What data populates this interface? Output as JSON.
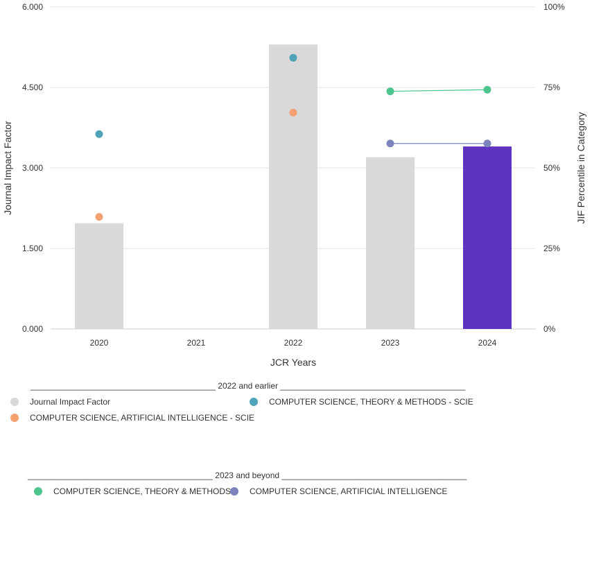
{
  "chart_data": {
    "type": "bar",
    "categories": [
      "2020",
      "2021",
      "2022",
      "2023",
      "2024"
    ],
    "xlabel": "JCR Years",
    "ylabel": "Journal Impact Factor",
    "ylabel_right": "JIF Percentile in Category",
    "ylim": [
      0,
      6
    ],
    "ylim_right": [
      0,
      100
    ],
    "y_ticks": [
      "0.000",
      "1.500",
      "3.000",
      "4.500",
      "6.000"
    ],
    "y_ticks_right": [
      "0%",
      "25%",
      "50%",
      "75%",
      "100%"
    ],
    "grid": true,
    "bars": {
      "name": "Journal Impact Factor",
      "values": [
        1.97,
        null,
        5.3,
        3.2,
        3.4
      ],
      "colors": [
        "#d9d9d9",
        "#d9d9d9",
        "#d9d9d9",
        "#d9d9d9",
        "#5e33bf"
      ]
    },
    "percentile_series": [
      {
        "name": "COMPUTER SCIENCE, THEORY & METHODS - SCIE",
        "color": "#4fa3b8",
        "values": [
          60.5,
          null,
          84.2,
          null,
          null
        ],
        "connected": false
      },
      {
        "name": "COMPUTER SCIENCE, ARTIFICIAL INTELLIGENCE - SCIE",
        "color": "#f4a070",
        "values": [
          34.8,
          null,
          67.2,
          null,
          null
        ],
        "connected": false
      },
      {
        "name": "COMPUTER SCIENCE, THEORY & METHODS",
        "color": "#4cc58e",
        "values": [
          null,
          null,
          null,
          73.8,
          74.3
        ],
        "connected": true
      },
      {
        "name": "COMPUTER SCIENCE, ARTIFICIAL INTELLIGENCE",
        "color": "#7c83bc",
        "values": [
          null,
          null,
          null,
          57.6,
          57.6
        ],
        "connected": true
      }
    ]
  },
  "legend": {
    "group1": {
      "header": "________________________________________ 2022 and earlier ________________________________________",
      "items": [
        {
          "label": "Journal Impact Factor",
          "color": "#d9d9d9"
        },
        {
          "label": "COMPUTER SCIENCE, THEORY & METHODS - SCIE",
          "color": "#4fa3b8"
        },
        {
          "label": "COMPUTER SCIENCE, ARTIFICIAL INTELLIGENCE - SCIE",
          "color": "#f4a070"
        }
      ]
    },
    "group2": {
      "header": "________________________________________ 2023 and beyond ________________________________________",
      "items": [
        {
          "label": "COMPUTER SCIENCE, THEORY & METHODS",
          "color": "#4cc58e"
        },
        {
          "label": "COMPUTER SCIENCE, ARTIFICIAL INTELLIGENCE",
          "color": "#7c83bc"
        }
      ]
    }
  }
}
